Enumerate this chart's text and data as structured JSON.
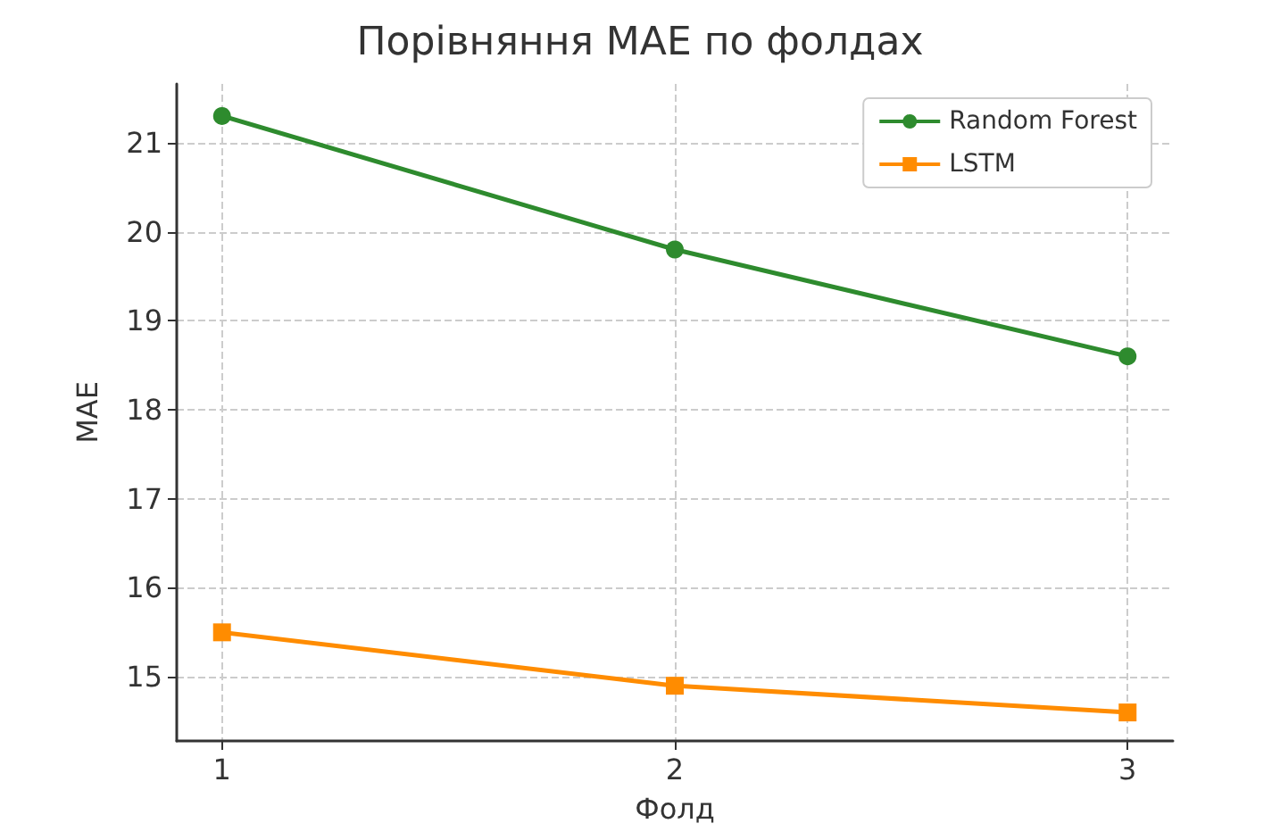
{
  "chart_data": {
    "type": "line",
    "title": "Порівняння MAE по фолдах",
    "xlabel": "Фолд",
    "ylabel": "MAE",
    "x": [
      1,
      2,
      3
    ],
    "series": [
      {
        "name": "Random Forest",
        "color": "#2e8b2e",
        "values": [
          21.3,
          19.8,
          18.6
        ],
        "marker": "circle"
      },
      {
        "name": "LSTM",
        "color": "#ff8c00",
        "values": [
          15.5,
          14.9,
          14.6
        ],
        "marker": "square"
      }
    ],
    "xlim": [
      0.9,
      3.1
    ],
    "xticks": [
      1,
      2,
      3
    ],
    "ylim": [
      14.28,
      21.66
    ],
    "yticks": [
      15,
      16,
      17,
      18,
      19,
      20,
      21
    ],
    "grid": true,
    "legend": "top right",
    "line_style": "solid"
  }
}
